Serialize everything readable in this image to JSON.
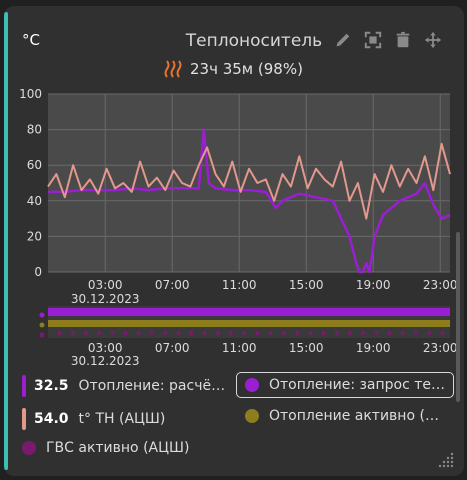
{
  "header": {
    "unit": "°C",
    "title": "Теплоноситель",
    "subtitle": "23ч 35м (98%)",
    "status_icon": "heat-waves-icon",
    "toolbar_icons": [
      "edit-icon",
      "fullscreen-icon",
      "delete-icon",
      "move-icon"
    ]
  },
  "colors": {
    "accent": "#3fbfb4",
    "series_purple": "#9a1fd2",
    "series_pink": "#e3988c",
    "series_olive": "#8d7d1c",
    "series_magenta": "#7a1a6e",
    "heat_icon": "#e8742c"
  },
  "chart_data": {
    "type": "line",
    "ylim": [
      0,
      100
    ],
    "yticks": [
      "100",
      "80",
      "60",
      "40",
      "20",
      "0"
    ],
    "x_range": [
      "29.12.2023 23:35",
      "30.12.2023 23:35"
    ],
    "xticks": [
      {
        "t": "03:00",
        "date": "30.12.2023"
      },
      {
        "t": "07:00",
        "date": ""
      },
      {
        "t": "11:00",
        "date": ""
      },
      {
        "t": "15:00",
        "date": ""
      },
      {
        "t": "19:00",
        "date": ""
      },
      {
        "t": "23:00",
        "date": ""
      }
    ],
    "series": [
      {
        "name": "Отопление: расчё…",
        "color": "#9a1fd2",
        "x": [
          0,
          1,
          2,
          3,
          4,
          5,
          6,
          7,
          8,
          9,
          9.3,
          9.6,
          10,
          11,
          12,
          13,
          13.6,
          14,
          15,
          16,
          17,
          17.5,
          18,
          18.4,
          18.6,
          18.8,
          19,
          19.2,
          19.5,
          20,
          21,
          22,
          22.5,
          23,
          23.5,
          24
        ],
        "values": [
          45,
          45,
          46,
          46,
          46,
          47,
          46,
          47,
          47,
          47,
          80,
          50,
          47,
          46,
          46,
          45,
          36,
          40,
          44,
          42,
          40,
          30,
          20,
          5,
          0,
          0,
          5,
          0,
          20,
          32,
          40,
          44,
          50,
          38,
          30,
          32
        ]
      },
      {
        "name": "t° ТН (АЦШ)",
        "color": "#e3988c",
        "x": [
          0,
          0.5,
          1,
          1.5,
          2,
          2.5,
          3,
          3.5,
          4,
          4.5,
          5,
          5.5,
          6,
          6.5,
          7,
          7.5,
          8,
          8.5,
          9,
          9.5,
          10,
          10.5,
          11,
          11.5,
          12,
          12.5,
          13,
          13.5,
          14,
          14.5,
          15,
          15.5,
          16,
          16.5,
          17,
          17.5,
          18,
          18.5,
          19,
          19.5,
          20,
          20.5,
          21,
          21.5,
          22,
          22.5,
          23,
          23.5,
          24
        ],
        "values": [
          48,
          55,
          42,
          60,
          46,
          52,
          44,
          58,
          47,
          50,
          45,
          62,
          48,
          53,
          46,
          57,
          50,
          48,
          60,
          70,
          55,
          48,
          62,
          45,
          58,
          50,
          52,
          40,
          55,
          48,
          65,
          47,
          58,
          52,
          48,
          62,
          40,
          50,
          30,
          55,
          45,
          60,
          48,
          58,
          50,
          65,
          46,
          72,
          55
        ]
      }
    ],
    "timeline_rows": [
      {
        "name": "Отопление: запрос те…",
        "color": "#9a1fd2"
      },
      {
        "name": "Отопление активно (…",
        "color": "#8d7d1c"
      },
      {
        "name": "ГВС активно (АЦШ)",
        "color": "#7a1a6e"
      }
    ],
    "grid": true
  },
  "legend": {
    "items": [
      {
        "value": "32.5",
        "label": "Отопление: расчё…",
        "color": "#9a1fd2",
        "kind": "bar"
      },
      {
        "value": "",
        "label": "Отопление: запрос те…",
        "color": "#9a1fd2",
        "kind": "dot",
        "selected": true
      },
      {
        "value": "54.0",
        "label": "t° ТН (АЦШ)",
        "color": "#e3988c",
        "kind": "bar"
      },
      {
        "value": "",
        "label": "Отопление активно (…",
        "color": "#8d7d1c",
        "kind": "dot"
      },
      {
        "value": "",
        "label": "ГВС активно (АЦШ)",
        "color": "#7a1a6e",
        "kind": "dot"
      }
    ]
  }
}
